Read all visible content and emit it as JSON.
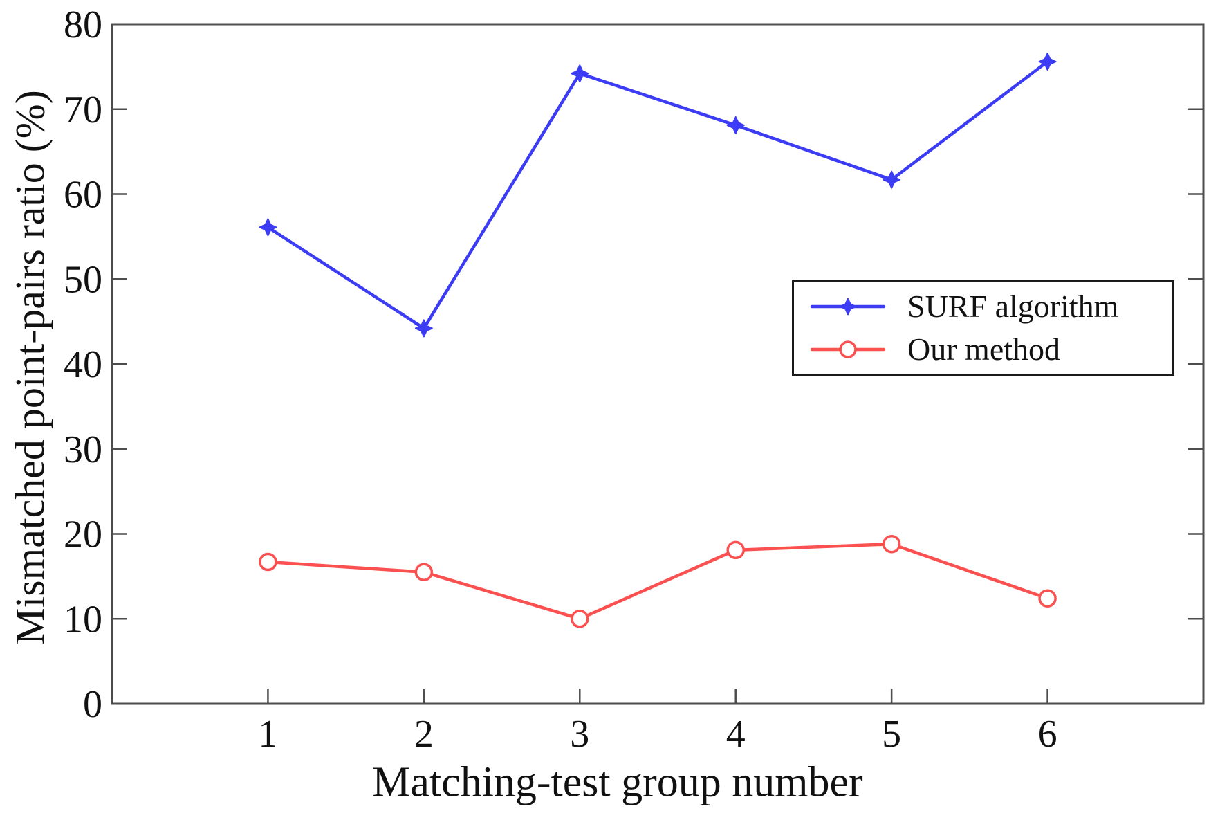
{
  "figure": {
    "background": "#ffffff",
    "axis_color": "#4d4d4d",
    "text_color": "#111111",
    "legend_border_color": "#1a1a1a"
  },
  "chart_data": {
    "type": "line",
    "title": "",
    "xlabel": "Matching-test group number",
    "ylabel": "Mismatched point-pairs ratio (%)",
    "x": [
      1,
      2,
      3,
      4,
      5,
      6
    ],
    "xticks": [
      "1",
      "2",
      "3",
      "4",
      "5",
      "6"
    ],
    "yticks": [
      "0",
      "10",
      "20",
      "30",
      "40",
      "50",
      "60",
      "70",
      "80"
    ],
    "ytick_values": [
      0,
      10,
      20,
      30,
      40,
      50,
      60,
      70,
      80
    ],
    "xlim": [
      0,
      7
    ],
    "ylim": [
      0,
      80
    ],
    "grid": false,
    "legend_position": "upper-right-inside",
    "series": [
      {
        "name": "SURF algorithm",
        "color": "#3c3cf4",
        "marker": "star4",
        "values": [
          56.1,
          44.2,
          74.2,
          68.1,
          61.7,
          75.6
        ]
      },
      {
        "name": "Our method",
        "color": "#fb5050",
        "marker": "circle-open",
        "values": [
          16.7,
          15.5,
          10.0,
          18.1,
          18.8,
          12.4
        ]
      }
    ]
  }
}
